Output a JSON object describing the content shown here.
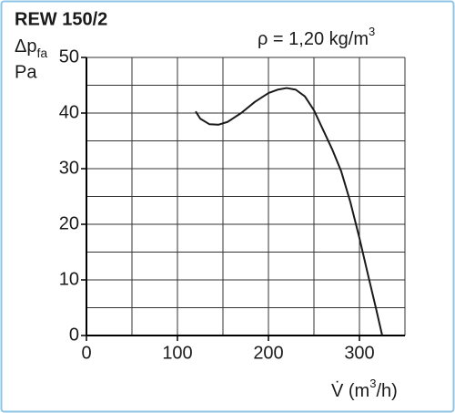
{
  "chart_data": {
    "type": "line",
    "title": "REW 150/2",
    "y_label": {
      "symbol": "Δp",
      "subscript": "fa",
      "unit": "Pa"
    },
    "annotation": {
      "text": "ρ = 1,20 kg/m",
      "superscript": "3"
    },
    "x_label": {
      "text": "V̇ (m",
      "superscript": "3",
      "suffix": "/h)"
    },
    "x": [
      120,
      125,
      135,
      145,
      155,
      170,
      185,
      200,
      210,
      220,
      230,
      240,
      250,
      260,
      270,
      280,
      290,
      300,
      310,
      318,
      325
    ],
    "values": [
      40.3,
      39,
      38,
      37.9,
      38.4,
      40,
      42,
      43.6,
      44.2,
      44.5,
      44.2,
      43,
      40.5,
      37,
      33.5,
      29.5,
      24,
      17.5,
      10.5,
      5,
      0
    ],
    "color": "#1a1a1a",
    "xlim": [
      0,
      350
    ],
    "ylim": [
      0,
      50
    ],
    "xticks": [
      0,
      100,
      200,
      300
    ],
    "yticks": [
      0,
      10,
      20,
      30,
      40,
      50
    ],
    "xgrid": [
      0,
      50,
      100,
      150,
      200,
      250,
      300,
      350
    ],
    "ygrid": [
      0,
      5,
      10,
      15,
      20,
      25,
      30,
      35,
      40,
      45,
      50
    ],
    "grid": true
  }
}
